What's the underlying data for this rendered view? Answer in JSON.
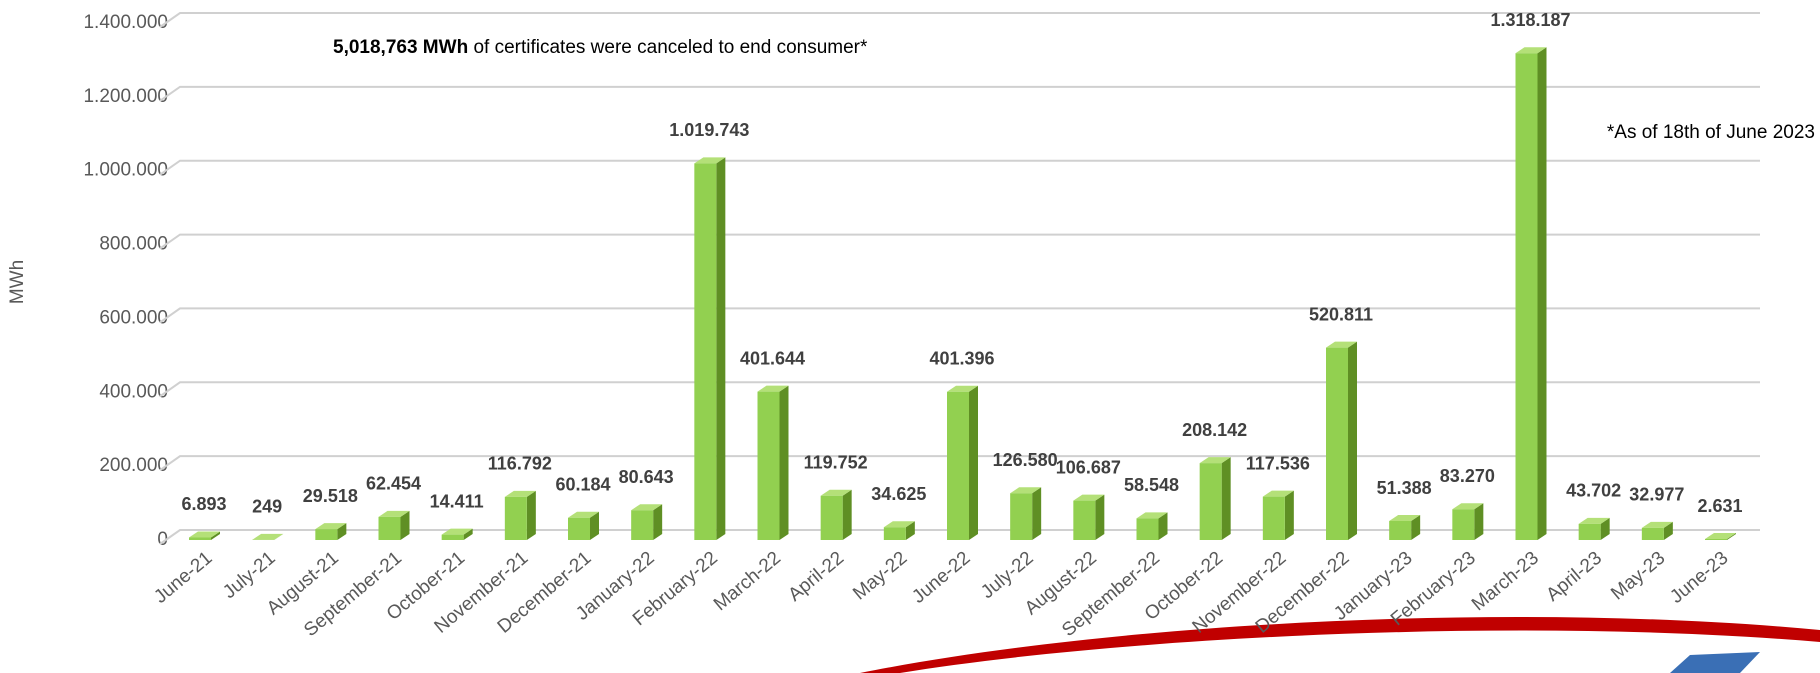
{
  "chart_data": {
    "type": "bar3d",
    "title_highlight": "5,018,763 MWh",
    "title": "of certificates were canceled to end consumer*",
    "annotation": "*As of 18th of June 2023",
    "y_label": "MWh",
    "color": "#92d050",
    "categories": [
      "June-21",
      "July-21",
      "August-21",
      "September-21",
      "October-21",
      "November-21",
      "December-21",
      "January-22",
      "February-22",
      "March-22",
      "April-22",
      "May-22",
      "June-22",
      "July-22",
      "August-22",
      "September-22",
      "October-22",
      "November-22",
      "December-22",
      "January-23",
      "February-23",
      "March-23",
      "April-23",
      "May-23",
      "June-23"
    ],
    "values": [
      6893,
      249,
      29518,
      62454,
      14411,
      116792,
      60184,
      80643,
      1019743,
      401644,
      119752,
      34625,
      401396,
      126580,
      106687,
      58548,
      208142,
      117536,
      520811,
      51388,
      83270,
      1318187,
      43702,
      32977,
      2631
    ],
    "value_labels": [
      "6.893",
      "249",
      "29.518",
      "62.454",
      "14.411",
      "116.792",
      "60.184",
      "80.643",
      "1.019.743",
      "401.644",
      "119.752",
      "34.625",
      "401.396",
      "126.580",
      "106.687",
      "58.548",
      "208.142",
      "117.536",
      "520.811",
      "51.388",
      "83.270",
      "1.318.187",
      "43.702",
      "32.977",
      "2.631"
    ],
    "ylim": [
      0,
      1400000
    ],
    "yticks": [
      0,
      {
        "value": 200000,
        "label": "200.000"
      },
      {
        "value": 400000,
        "label": "400.000"
      },
      {
        "value": 600000,
        "label": "600.000"
      },
      {
        "value": 800000,
        "label": "800.000"
      },
      {
        "value": 1000000,
        "label": "1.000.000"
      },
      {
        "value": 1200000,
        "label": "1.200.000"
      },
      {
        "value": 1400000,
        "label": "1.400.000"
      }
    ],
    "grid": true
  }
}
